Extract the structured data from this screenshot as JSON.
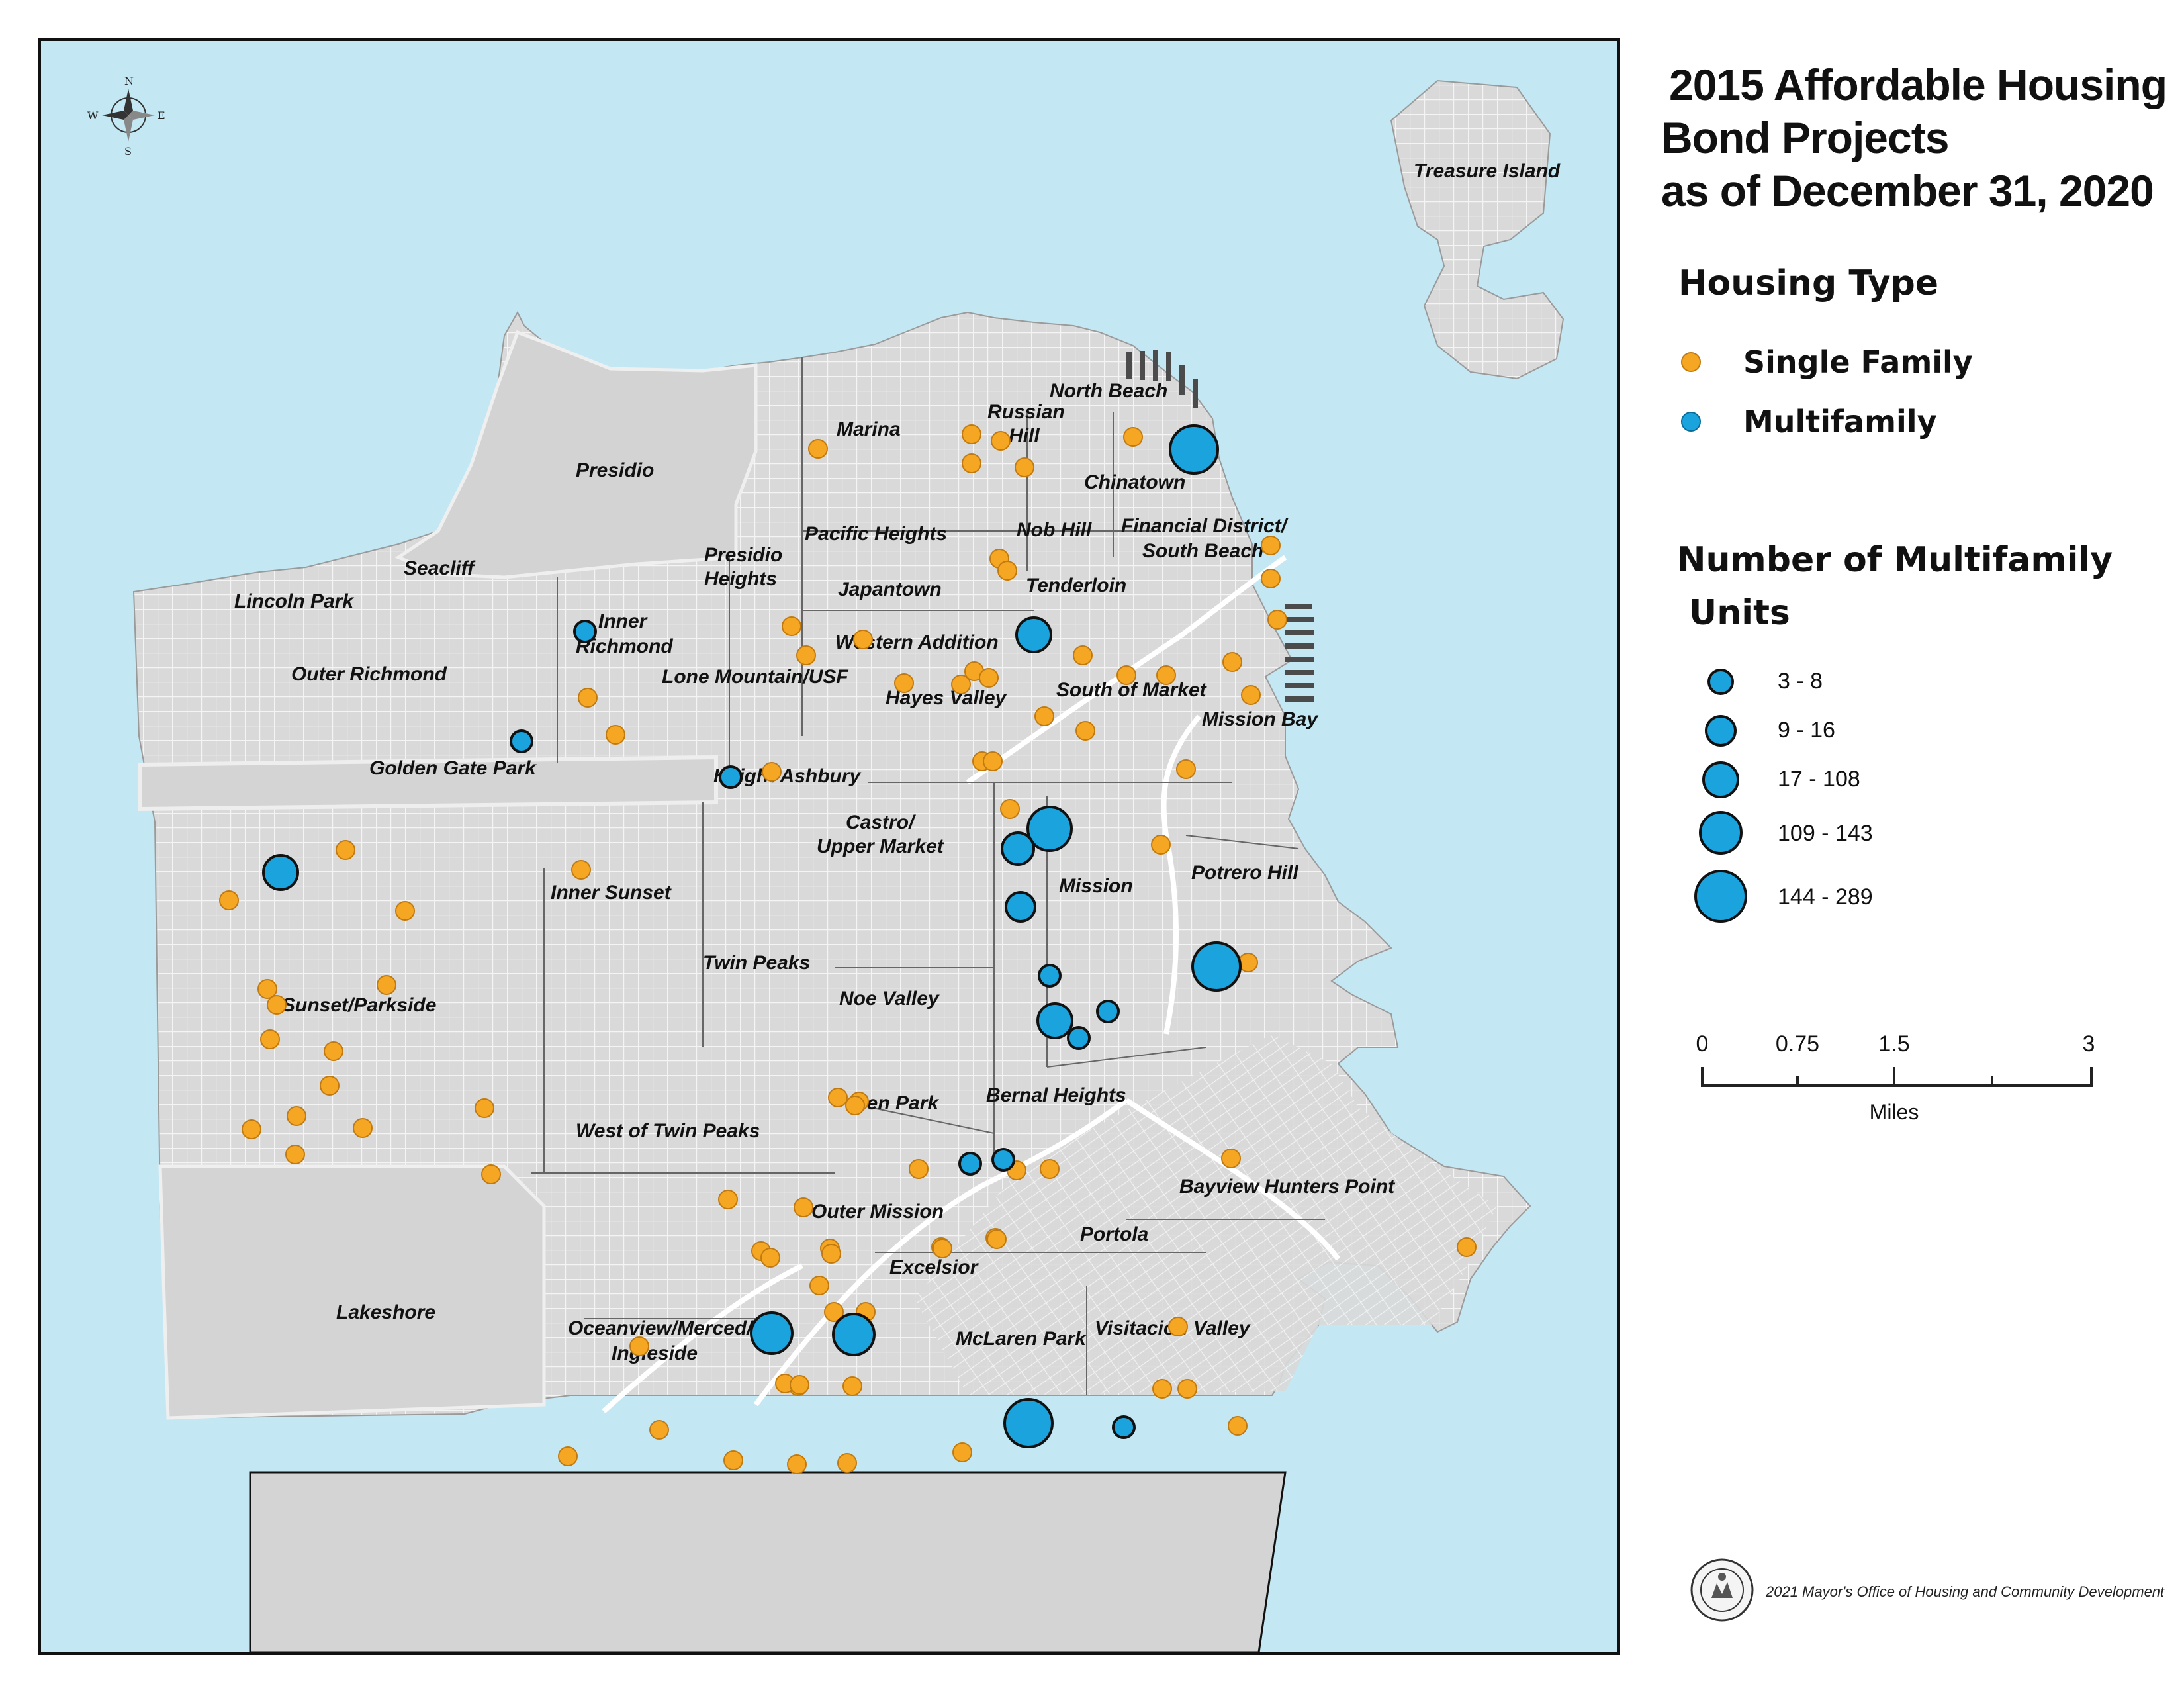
{
  "title_lines": [
    "2015 Affordable Housing",
    "Bond Projects",
    "as of December 31, 2020"
  ],
  "legend": {
    "housing_type_heading": "Housing Type",
    "single_family_label": "Single Family",
    "multifamily_label": "Multifamily",
    "units_heading_line1": "Number of Multifamily",
    "units_heading_line2": "Units",
    "size_classes": [
      "3 - 8",
      "9 - 16",
      "17 - 108",
      "109 - 143",
      "144 - 289"
    ]
  },
  "scale_bar": {
    "labels": [
      "0",
      "0.75",
      "1.5",
      "3"
    ],
    "unit": "Miles"
  },
  "compass": {
    "n": "N",
    "s": "S",
    "e": "E",
    "w": "W"
  },
  "credit": "2021 Mayor's Office of Housing and Community Development",
  "colors": {
    "water": "#c3e8f4",
    "land": "#d9d9d9",
    "single_family": "#f5a623",
    "multifamily": "#1aa3dc"
  },
  "neighborhoods": {
    "treasure_island": "Treasure Island",
    "north_beach": "North Beach",
    "marina": "Marina",
    "russian_hill_1": "Russian",
    "russian_hill_2": "Hill",
    "chinatown": "Chinatown",
    "presidio": "Presidio",
    "financial_1": "Financial District/",
    "financial_2": "South Beach",
    "nob_hill": "Nob Hill",
    "pacific_heights": "Pacific Heights",
    "presidio_heights_1": "Presidio",
    "presidio_heights_2": "Heights",
    "seacliff": "Seacliff",
    "lincoln_park": "Lincoln Park",
    "japantown": "Japantown",
    "tenderloin": "Tenderloin",
    "inner_richmond_1": "Inner",
    "inner_richmond_2": "Richmond",
    "western_addition": "Western Addition",
    "outer_richmond": "Outer Richmond",
    "lone_mountain": "Lone Mountain/USF",
    "south_of_market": "South of Market",
    "hayes_valley": "Hayes Valley",
    "mission_bay": "Mission Bay",
    "golden_gate_park": "Golden Gate Park",
    "haight_ashbury": "Haight Ashbury",
    "castro_1": "Castro/",
    "castro_2": "Upper Market",
    "mission": "Mission",
    "potrero_hill": "Potrero Hill",
    "inner_sunset": "Inner Sunset",
    "twin_peaks": "Twin Peaks",
    "noe_valley": "Noe Valley",
    "sunset_parkside": "Sunset/Parkside",
    "glen_park": "Glen Park",
    "bernal_heights": "Bernal Heights",
    "west_of_twin_peaks": "West of Twin Peaks",
    "bayview": "Bayview Hunters Point",
    "outer_mission": "Outer Mission",
    "portola": "Portola",
    "excelsior": "Excelsior",
    "lakeshore": "Lakeshore",
    "oceanview_1": "Oceanview/Merced/",
    "oceanview_2": "Ingleside",
    "mclaren_park": "McLaren Park",
    "visitacion_valley": "Visitacion Valley"
  }
}
